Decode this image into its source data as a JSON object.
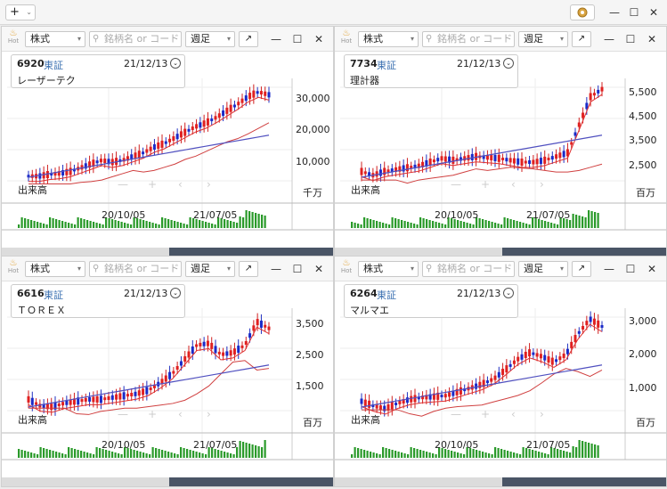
{
  "toolbar": {
    "add_label": "+",
    "add_chevron": "⌄",
    "gear": "⚙",
    "minimize": "—",
    "maximize": "☐",
    "close": "✕"
  },
  "common": {
    "market_select": "株式",
    "search_placeholder": "銘柄名 or コード",
    "period_select": "週足",
    "hot_label": "Hot",
    "volume_label": "出来高",
    "x_ticks": [
      "20/10/05",
      "21/07/05"
    ],
    "nav": [
      "—",
      "+",
      "‹",
      "›"
    ],
    "external": "↗",
    "min": "—",
    "max": "☐",
    "close": "✕"
  },
  "panels": [
    {
      "code": "6920",
      "exchange": "東証",
      "date": "21/12/13",
      "name": "レーザーテク",
      "volume_unit": "千万",
      "y_ticks": [
        "30,000",
        "20,000",
        "10,000"
      ]
    },
    {
      "code": "7734",
      "exchange": "東証",
      "date": "21/12/13",
      "name": "理計器",
      "volume_unit": "百万",
      "y_ticks": [
        "5,500",
        "4,500",
        "3,500",
        "2,500"
      ]
    },
    {
      "code": "6616",
      "exchange": "東証",
      "date": "21/12/13",
      "name": "ＴＯＲＥＸ",
      "volume_unit": "百万",
      "y_ticks": [
        "3,500",
        "2,500",
        "1,500"
      ]
    },
    {
      "code": "6264",
      "exchange": "東証",
      "date": "21/12/13",
      "name": "マルマエ",
      "volume_unit": "百万",
      "y_ticks": [
        "3,000",
        "2,000",
        "1,000"
      ]
    }
  ]
}
